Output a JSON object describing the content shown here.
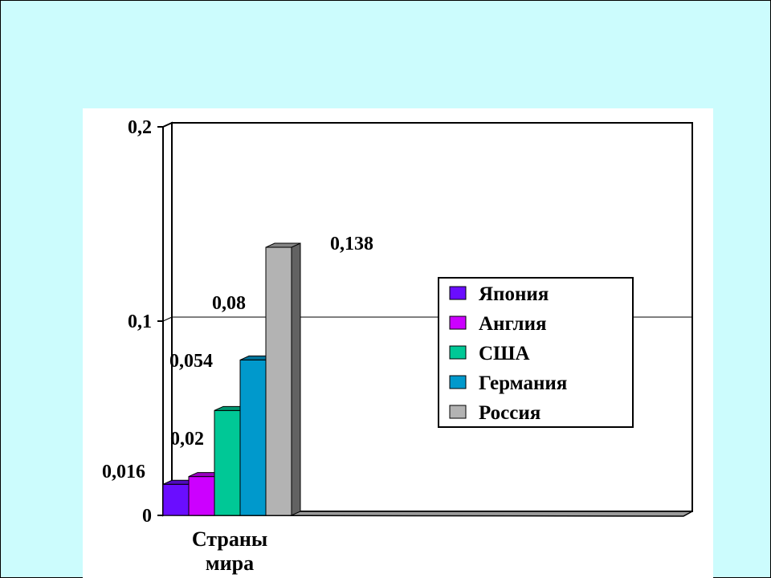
{
  "chart_data": {
    "type": "bar",
    "categories": [
      "Страны мира"
    ],
    "series": [
      {
        "name": "Япония",
        "values": [
          0.016
        ],
        "color": "#6a0dff",
        "label": "0,016"
      },
      {
        "name": "Англия",
        "values": [
          0.02
        ],
        "color": "#cc00ff",
        "label": "0,02"
      },
      {
        "name": "США",
        "values": [
          0.054
        ],
        "color": "#00c896",
        "label": "0,054"
      },
      {
        "name": "Германия",
        "values": [
          0.08
        ],
        "color": "#0099cc",
        "label": "0,08"
      },
      {
        "name": "Россия",
        "values": [
          0.138
        ],
        "color": "#b3b3b3",
        "label": "0,138"
      }
    ],
    "ylim": [
      0,
      0.2
    ],
    "yticks": [
      {
        "value": 0,
        "label": "0"
      },
      {
        "value": 0.1,
        "label": "0,1"
      },
      {
        "value": 0.2,
        "label": "0,2"
      }
    ],
    "gridlines": [
      0.1
    ],
    "xlabel_lines": [
      "Страны",
      "мира"
    ],
    "legend_position": "right",
    "three_d": true
  },
  "colors": {
    "background": "#ccfcfd",
    "panel": "#ffffff",
    "axis": "#000000"
  }
}
